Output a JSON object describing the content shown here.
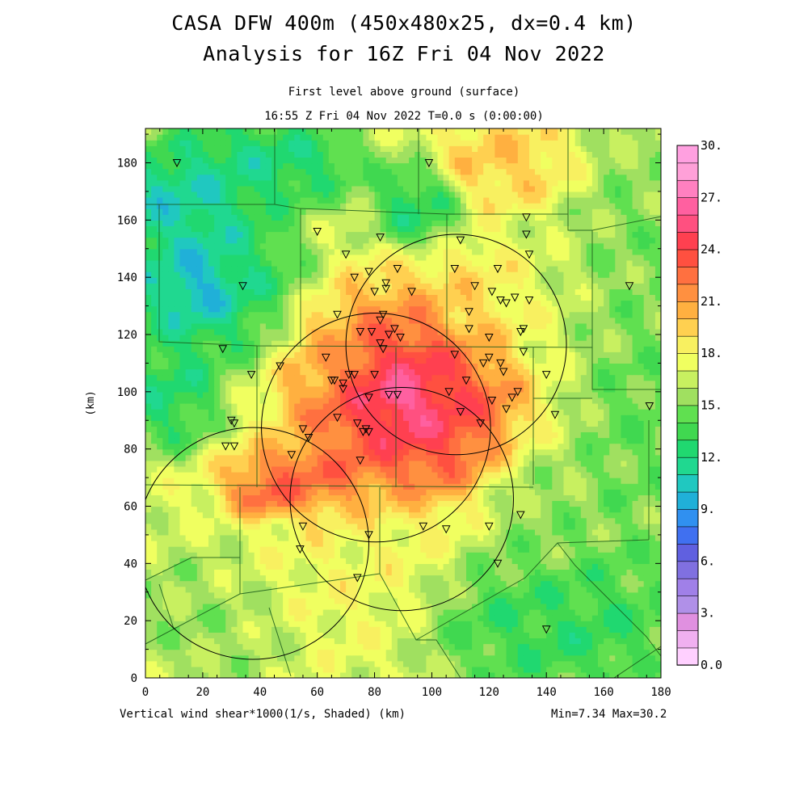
{
  "header": {
    "title_line1": "CASA DFW 400m (450x480x25, dx=0.4 km)",
    "title_line2": "Analysis for 16Z Fri 04 Nov 2022",
    "subtitle_line1": "First level above ground (surface)",
    "subtitle_line2": "16:55 Z Fri 04 Nov 2022   T=0.0 s (0:00:00)"
  },
  "footer": {
    "field_label": "Vertical wind shear*1000(1/s, Shaded)  (km)",
    "minmax": "Min=7.34 Max=30.2"
  },
  "chart_data": {
    "type": "heatmap",
    "title": "CASA DFW 400m (450x480x25, dx=0.4 km)",
    "ylabel": "(km)",
    "xlim": [
      0,
      180
    ],
    "ylim": [
      0,
      192
    ],
    "x_ticks": [
      0,
      20,
      40,
      60,
      80,
      100,
      120,
      140,
      160,
      180
    ],
    "y_ticks": [
      0,
      20,
      40,
      60,
      80,
      100,
      120,
      140,
      160,
      180
    ],
    "value_range": [
      7.34,
      30.2
    ],
    "colorbar": {
      "min": 0,
      "max": 30,
      "labels": [
        "0.0",
        "3.",
        "6.",
        "9.",
        "12.",
        "15.",
        "18.",
        "21.",
        "24.",
        "27.",
        "30."
      ],
      "colors": [
        "#ffd0ff",
        "#f0b0f0",
        "#e090e0",
        "#b090e8",
        "#a080e8",
        "#8070e0",
        "#6060e0",
        "#4070f0",
        "#3090f0",
        "#20b0d8",
        "#20c8c0",
        "#20d890",
        "#20d870",
        "#40d850",
        "#60e050",
        "#a0e060",
        "#c8f060",
        "#f0ff60",
        "#f8f060",
        "#ffd050",
        "#ffb040",
        "#ff9040",
        "#ff7040",
        "#ff5040",
        "#ff4050",
        "#ff5080",
        "#ff60a0",
        "#ff80c0",
        "#ffa0d8",
        "#ffa0e0"
      ]
    },
    "field_blobs": [
      {
        "x": 20,
        "y": 140,
        "rx": 30,
        "ry": 28,
        "v": 11.5
      },
      {
        "x": 18,
        "y": 138,
        "rx": 14,
        "ry": 14,
        "v": 7.5
      },
      {
        "x": 12,
        "y": 165,
        "rx": 22,
        "ry": 18,
        "v": 10
      },
      {
        "x": 40,
        "y": 180,
        "rx": 32,
        "ry": 14,
        "v": 11.5
      },
      {
        "x": 95,
        "y": 165,
        "rx": 14,
        "ry": 14,
        "v": 12
      },
      {
        "x": 8,
        "y": 100,
        "rx": 16,
        "ry": 18,
        "v": 12
      },
      {
        "x": 125,
        "y": 180,
        "rx": 22,
        "ry": 14,
        "v": 20
      },
      {
        "x": 150,
        "y": 130,
        "rx": 30,
        "ry": 30,
        "v": 16
      },
      {
        "x": 170,
        "y": 110,
        "rx": 20,
        "ry": 70,
        "v": 14
      },
      {
        "x": 140,
        "y": 55,
        "rx": 20,
        "ry": 28,
        "v": 15
      },
      {
        "x": 145,
        "y": 20,
        "rx": 40,
        "ry": 24,
        "v": 12.5
      },
      {
        "x": 120,
        "y": 130,
        "rx": 28,
        "ry": 22,
        "v": 19
      },
      {
        "x": 60,
        "y": 40,
        "rx": 40,
        "ry": 28,
        "v": 18
      },
      {
        "x": 25,
        "y": 25,
        "rx": 30,
        "ry": 25,
        "v": 15
      },
      {
        "x": 95,
        "y": 100,
        "rx": 38,
        "ry": 34,
        "v": 23
      },
      {
        "x": 92,
        "y": 98,
        "rx": 28,
        "ry": 26,
        "v": 26
      },
      {
        "x": 93,
        "y": 98,
        "rx": 18,
        "ry": 18,
        "v": 28
      },
      {
        "x": 90,
        "y": 97,
        "rx": 6,
        "ry": 7,
        "v": 30.2
      },
      {
        "x": 85,
        "y": 100,
        "rx": 4,
        "ry": 4,
        "v": 30.2
      },
      {
        "x": 55,
        "y": 68,
        "rx": 24,
        "ry": 12,
        "v": 24
      },
      {
        "x": 42,
        "y": 63,
        "rx": 10,
        "ry": 7,
        "v": 24
      },
      {
        "x": 65,
        "y": 115,
        "rx": 12,
        "ry": 14,
        "v": 20
      }
    ],
    "radar_circles": [
      {
        "x": 108.5,
        "y": 116.5,
        "r": 38.5
      },
      {
        "x": 80.5,
        "y": 87.5,
        "r": 40
      },
      {
        "x": 89.5,
        "y": 62.5,
        "r": 39
      },
      {
        "x": 37.5,
        "y": 47,
        "r": 40.5
      }
    ],
    "stations": [
      [
        11,
        180
      ],
      [
        99,
        180
      ],
      [
        60,
        156
      ],
      [
        82,
        154
      ],
      [
        110,
        153
      ],
      [
        133,
        161
      ],
      [
        133,
        155
      ],
      [
        134,
        148
      ],
      [
        70,
        148
      ],
      [
        73,
        140
      ],
      [
        78,
        142
      ],
      [
        88,
        143
      ],
      [
        108,
        143
      ],
      [
        123,
        143
      ],
      [
        115,
        137
      ],
      [
        121,
        135
      ],
      [
        93,
        135
      ],
      [
        84,
        136
      ],
      [
        80,
        135
      ],
      [
        84,
        138
      ],
      [
        134,
        132
      ],
      [
        126,
        131
      ],
      [
        129,
        133
      ],
      [
        124,
        132
      ],
      [
        113,
        128
      ],
      [
        132,
        122
      ],
      [
        131,
        121
      ],
      [
        120,
        119
      ],
      [
        67,
        127
      ],
      [
        83,
        127
      ],
      [
        87,
        122
      ],
      [
        89,
        119
      ],
      [
        82,
        125
      ],
      [
        79,
        121
      ],
      [
        75,
        121
      ],
      [
        85,
        120
      ],
      [
        82,
        117
      ],
      [
        83,
        115
      ],
      [
        113,
        122
      ],
      [
        108,
        113
      ],
      [
        120,
        112
      ],
      [
        118,
        110
      ],
      [
        124,
        110
      ],
      [
        125,
        107
      ],
      [
        132,
        114
      ],
      [
        140,
        106
      ],
      [
        63,
        112
      ],
      [
        47,
        109
      ],
      [
        37,
        106
      ],
      [
        27,
        115
      ],
      [
        34,
        137
      ],
      [
        169,
        137
      ],
      [
        69,
        103
      ],
      [
        71,
        106
      ],
      [
        73,
        106
      ],
      [
        65,
        104
      ],
      [
        66,
        104
      ],
      [
        69,
        101
      ],
      [
        80,
        106
      ],
      [
        85,
        99
      ],
      [
        78,
        98
      ],
      [
        88,
        99
      ],
      [
        106,
        100
      ],
      [
        112,
        104
      ],
      [
        128,
        98
      ],
      [
        130,
        100
      ],
      [
        126,
        94
      ],
      [
        121,
        97
      ],
      [
        117,
        89
      ],
      [
        110,
        93
      ],
      [
        143,
        92
      ],
      [
        176,
        95
      ],
      [
        30,
        90
      ],
      [
        31,
        89
      ],
      [
        28,
        81
      ],
      [
        31,
        81
      ],
      [
        67,
        91
      ],
      [
        74,
        89
      ],
      [
        76,
        86
      ],
      [
        78,
        86
      ],
      [
        77,
        87
      ],
      [
        55,
        87
      ],
      [
        57,
        84
      ],
      [
        51,
        78
      ],
      [
        75,
        76
      ],
      [
        55,
        53
      ],
      [
        54,
        45
      ],
      [
        78,
        50
      ],
      [
        97,
        53
      ],
      [
        105,
        52
      ],
      [
        120,
        53
      ],
      [
        131,
        57
      ],
      [
        123,
        40
      ],
      [
        74,
        35
      ],
      [
        140,
        17
      ]
    ]
  }
}
